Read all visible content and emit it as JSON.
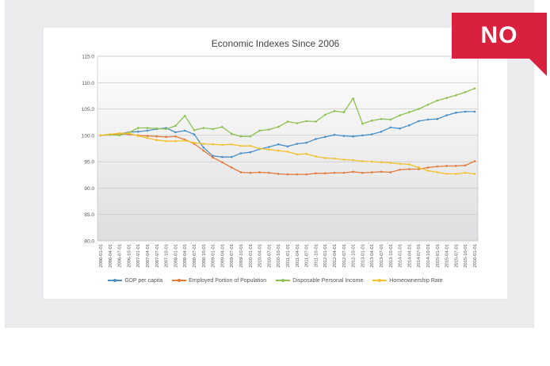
{
  "badge": {
    "text": "NO",
    "color": "#d9203e"
  },
  "chart_data": {
    "type": "line",
    "title": "Economic Indexes Since 2006",
    "xlabel": "",
    "ylabel": "",
    "ylim": [
      80,
      115
    ],
    "yticks": [
      "115.0",
      "110.0",
      "105.0",
      "100.0",
      "95.0",
      "90.0",
      "85.0",
      "80.0"
    ],
    "grid": true,
    "legend_position": "bottom",
    "categories": [
      "2006-01-01",
      "2006-04-01",
      "2006-07-01",
      "2006-10-01",
      "2007-01-01",
      "2007-04-01",
      "2007-07-01",
      "2007-10-01",
      "2008-01-01",
      "2008-04-01",
      "2008-07-01",
      "2008-10-01",
      "2009-01-01",
      "2009-04-01",
      "2009-07-01",
      "2009-10-01",
      "2010-01-01",
      "2010-04-01",
      "2010-07-01",
      "2010-10-01",
      "2011-01-01",
      "2011-04-01",
      "2011-07-01",
      "2011-10-01",
      "2012-01-01",
      "2012-04-01",
      "2012-07-01",
      "2012-10-01",
      "2013-01-01",
      "2013-04-01",
      "2013-07-01",
      "2013-10-01",
      "2014-01-01",
      "2014-04-01",
      "2014-07-01",
      "2014-10-01",
      "2015-01-01",
      "2015-04-01",
      "2015-07-01",
      "2015-10-01",
      "2016-01-01"
    ],
    "series": [
      {
        "name": "GDP per capita",
        "color": "#4a90c8",
        "values": [
          100.0,
          100.2,
          100.3,
          100.6,
          100.7,
          100.9,
          101.2,
          101.4,
          100.6,
          100.9,
          100.2,
          97.7,
          96.1,
          95.9,
          95.9,
          96.6,
          96.8,
          97.4,
          97.8,
          98.3,
          97.9,
          98.4,
          98.6,
          99.3,
          99.7,
          100.1,
          99.9,
          99.8,
          100.0,
          100.2,
          100.7,
          101.5,
          101.3,
          101.9,
          102.7,
          103.0,
          103.1,
          103.8,
          104.3,
          104.5,
          104.5
        ]
      },
      {
        "name": "Employed Portion of Population",
        "color": "#e07b39",
        "values": [
          100.0,
          100.1,
          100.3,
          100.2,
          100.0,
          99.9,
          99.8,
          99.7,
          99.8,
          99.2,
          98.4,
          97.1,
          95.8,
          94.9,
          93.9,
          93.0,
          92.9,
          93.0,
          92.9,
          92.7,
          92.6,
          92.6,
          92.6,
          92.8,
          92.8,
          92.9,
          92.9,
          93.1,
          92.9,
          93.0,
          93.1,
          93.0,
          93.5,
          93.6,
          93.6,
          93.9,
          94.1,
          94.2,
          94.2,
          94.3,
          95.1
        ]
      },
      {
        "name": "Disposable Personal Income",
        "color": "#8cc152",
        "values": [
          100.0,
          100.1,
          100.0,
          100.5,
          101.4,
          101.4,
          101.3,
          101.2,
          101.8,
          103.7,
          101.0,
          101.4,
          101.2,
          101.6,
          100.3,
          99.8,
          99.8,
          100.9,
          101.1,
          101.6,
          102.6,
          102.3,
          102.7,
          102.6,
          103.9,
          104.6,
          104.4,
          107.0,
          102.2,
          102.8,
          103.1,
          103.0,
          103.8,
          104.4,
          105.0,
          105.8,
          106.6,
          107.1,
          107.6,
          108.2,
          108.9
        ]
      },
      {
        "name": "Homeownership Rate",
        "color": "#f2c12e",
        "values": [
          100.0,
          100.2,
          100.4,
          100.4,
          99.9,
          99.5,
          99.1,
          98.9,
          98.9,
          99.0,
          98.6,
          98.4,
          98.3,
          98.2,
          98.3,
          98.0,
          98.0,
          97.5,
          97.3,
          97.1,
          96.9,
          96.4,
          96.5,
          96.0,
          95.7,
          95.6,
          95.4,
          95.3,
          95.1,
          95.0,
          94.9,
          94.8,
          94.6,
          94.5,
          93.9,
          93.3,
          93.0,
          92.7,
          92.7,
          92.9,
          92.7
        ]
      }
    ]
  }
}
